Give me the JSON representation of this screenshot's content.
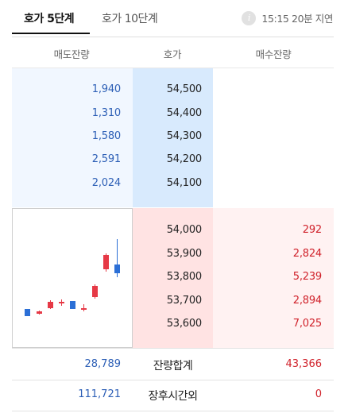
{
  "tabs": [
    {
      "label": "호가 5단계",
      "active": true
    },
    {
      "label": "호가 10단계",
      "active": false
    }
  ],
  "delay_notice": "15:15 20분 지연",
  "info_icon": "info-icon",
  "columns": {
    "sell": "매도잔량",
    "price": "호가",
    "buy": "매수잔량"
  },
  "asks": [
    {
      "qty": "1,940",
      "price": "54,500"
    },
    {
      "qty": "1,310",
      "price": "54,400"
    },
    {
      "qty": "1,580",
      "price": "54,300"
    },
    {
      "qty": "2,591",
      "price": "54,200"
    },
    {
      "qty": "2,024",
      "price": "54,100"
    }
  ],
  "bids": [
    {
      "price": "54,000",
      "qty": "292"
    },
    {
      "price": "53,900",
      "qty": "2,824"
    },
    {
      "price": "53,800",
      "qty": "5,239"
    },
    {
      "price": "53,700",
      "qty": "2,894"
    },
    {
      "price": "53,600",
      "qty": "7,025"
    }
  ],
  "total": {
    "sell": "28,789",
    "label": "잔량합계",
    "buy": "43,366"
  },
  "after_hours": {
    "sell": "111,721",
    "label": "장후시간외",
    "buy": "0"
  },
  "colors": {
    "up": "#e63946",
    "down": "#2b6fd6",
    "sell_text": "#2d5fb6",
    "buy_text": "#d0212a"
  }
}
